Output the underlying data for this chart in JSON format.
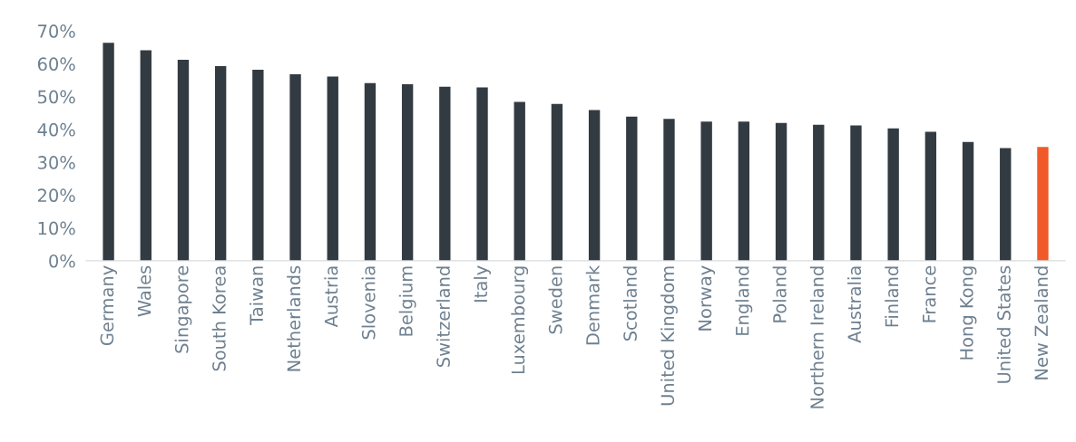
{
  "chart_data": {
    "type": "bar",
    "categories": [
      "Germany",
      "Wales",
      "Singapore",
      "South Korea",
      "Taiwan",
      "Netherlands",
      "Austria",
      "Slovenia",
      "Belgium",
      "Switzerland",
      "Italy",
      "Luxembourg",
      "Sweden",
      "Denmark",
      "Scotland",
      "United Kingdom",
      "Norway",
      "England",
      "Poland",
      "Northern Ireland",
      "Australia",
      "Finland",
      "France",
      "Hong Kong",
      "United States",
      "New Zealand"
    ],
    "values": [
      66.4,
      64.1,
      61.2,
      59.3,
      58.2,
      56.8,
      56.1,
      54.1,
      53.8,
      53.0,
      52.8,
      48.4,
      47.8,
      45.9,
      43.9,
      43.2,
      42.4,
      42.4,
      42.0,
      41.4,
      41.2,
      40.3,
      39.3,
      36.2,
      34.3,
      34.7
    ],
    "colors": [
      "#333b42",
      "#333b42",
      "#333b42",
      "#333b42",
      "#333b42",
      "#333b42",
      "#333b42",
      "#333b42",
      "#333b42",
      "#333b42",
      "#333b42",
      "#333b42",
      "#333b42",
      "#333b42",
      "#333b42",
      "#333b42",
      "#333b42",
      "#333b42",
      "#333b42",
      "#333b42",
      "#333b42",
      "#333b42",
      "#333b42",
      "#333b42",
      "#333b42",
      "#f05a28"
    ],
    "ylim": [
      0,
      70
    ],
    "yticks": [
      {
        "value": 0,
        "label": "0%"
      },
      {
        "value": 10,
        "label": "10%"
      },
      {
        "value": 20,
        "label": "20%"
      },
      {
        "value": 30,
        "label": "30%"
      },
      {
        "value": 40,
        "label": "40%"
      },
      {
        "value": 50,
        "label": "50%"
      },
      {
        "value": 60,
        "label": "60%"
      },
      {
        "value": 70,
        "label": "70%"
      }
    ],
    "grid": false,
    "legend": false
  }
}
